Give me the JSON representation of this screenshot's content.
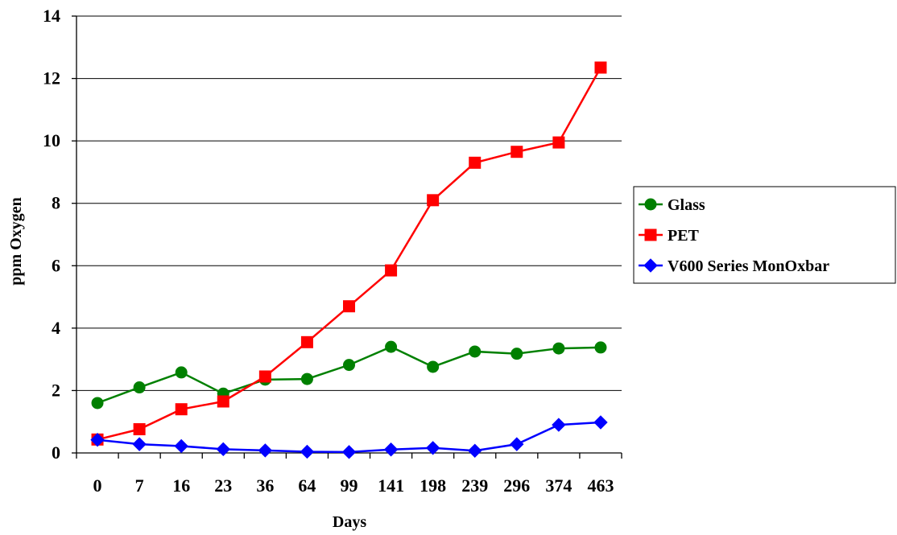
{
  "chart_data": {
    "type": "line",
    "title": "",
    "xlabel": "Days",
    "ylabel": "ppm Oxygen",
    "categories": [
      "0",
      "7",
      "16",
      "23",
      "36",
      "64",
      "99",
      "141",
      "198",
      "239",
      "296",
      "374",
      "463"
    ],
    "ylim": [
      0,
      14
    ],
    "yticks": [
      0,
      2,
      4,
      6,
      8,
      10,
      12,
      14
    ],
    "grid": "horizontal",
    "legend_position": "right",
    "series": [
      {
        "name": "Glass",
        "color": "#008000",
        "marker": "circle",
        "values": [
          1.6,
          2.1,
          2.58,
          1.9,
          2.35,
          2.37,
          2.82,
          3.4,
          2.76,
          3.25,
          3.18,
          3.35,
          3.38
        ]
      },
      {
        "name": "PET",
        "color": "#ff0000",
        "marker": "square",
        "values": [
          0.43,
          0.76,
          1.4,
          1.65,
          2.45,
          3.55,
          4.7,
          5.85,
          8.1,
          9.3,
          9.65,
          9.95,
          12.35
        ]
      },
      {
        "name": "V600 Series MonOxbar",
        "color": "#0000ff",
        "marker": "diamond",
        "values": [
          0.42,
          0.28,
          0.22,
          0.12,
          0.08,
          0.04,
          0.03,
          0.11,
          0.16,
          0.07,
          0.28,
          0.9,
          0.98
        ]
      }
    ]
  }
}
